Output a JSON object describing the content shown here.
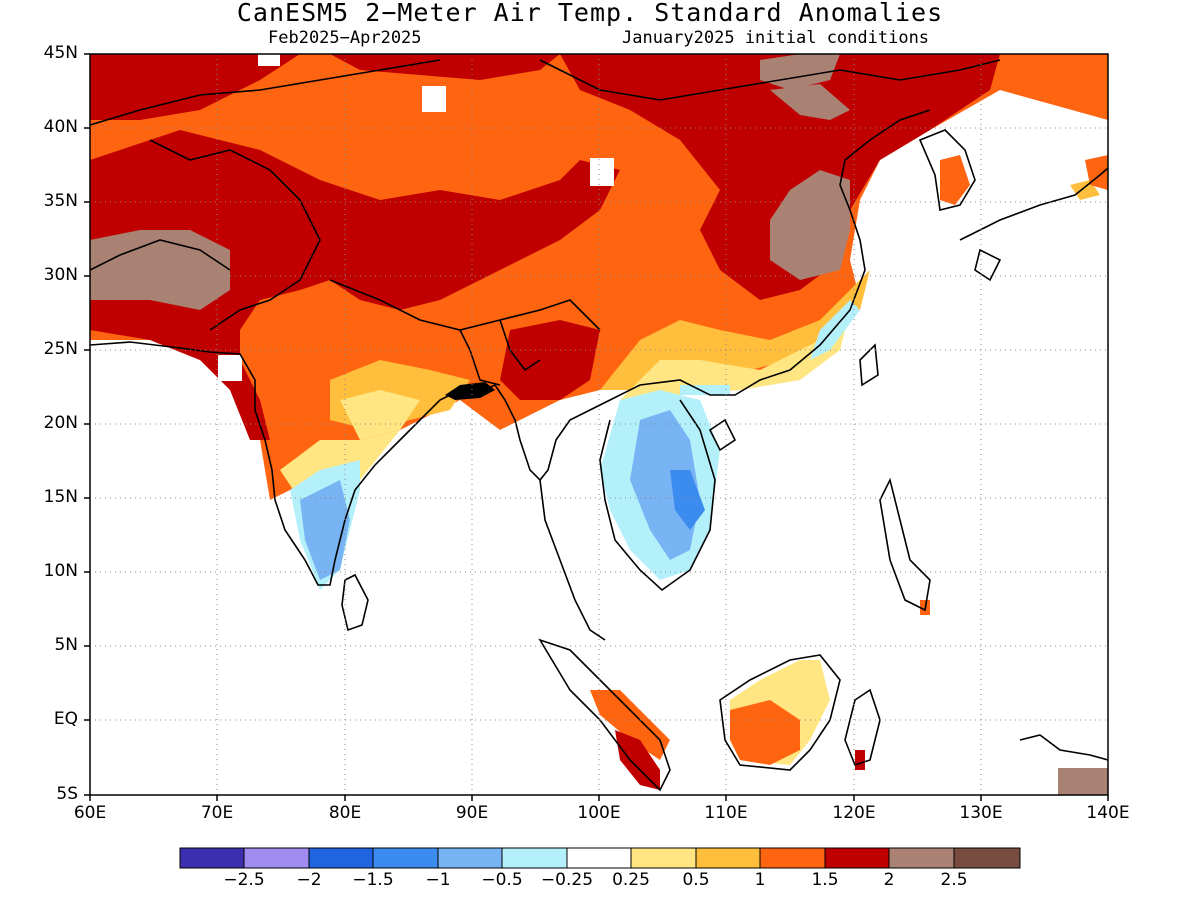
{
  "title": "CanESM5 2−Meter Air Temp. Standard Anomalies",
  "period": "Feb2025−Apr2025",
  "init": "January2025 initial conditions",
  "lat_labels": [
    "45N",
    "40N",
    "35N",
    "30N",
    "25N",
    "20N",
    "15N",
    "10N",
    "5N",
    "EQ",
    "5S"
  ],
  "lon_labels": [
    "60E",
    "70E",
    "80E",
    "90E",
    "100E",
    "110E",
    "120E",
    "130E",
    "140E"
  ],
  "colorbar": {
    "colors": [
      "#3b2fb0",
      "#a08cf0",
      "#1f64e0",
      "#3c8cf0",
      "#78b4f4",
      "#b4f0fa",
      "#ffffff",
      "#ffe682",
      "#ffbe3c",
      "#ff6410",
      "#c00000",
      "#aa8274",
      "#784c40"
    ],
    "tick_labels": [
      "−2.5",
      "−2",
      "−1.5",
      "−1",
      "−0.5",
      "−0.25",
      "0.25",
      "0.5",
      "1",
      "1.5",
      "2",
      "2.5"
    ]
  }
}
